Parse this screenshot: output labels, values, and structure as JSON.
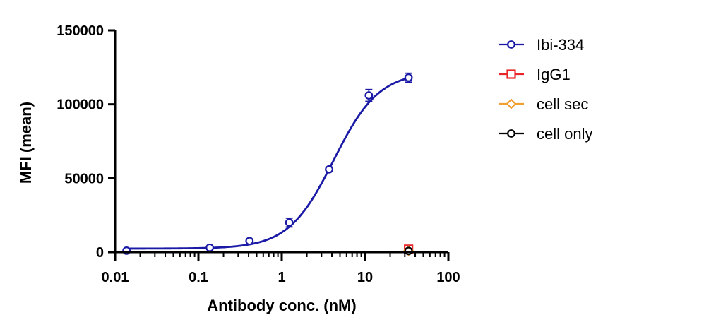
{
  "chart_data": {
    "type": "scatter",
    "title": "",
    "xlabel": "Antibody conc. (nM)",
    "ylabel": "MFI (mean)",
    "x_scale": "log",
    "xlim": [
      0.01,
      100
    ],
    "ylim": [
      0,
      150000
    ],
    "x_ticks": [
      "0.01",
      "0.1",
      "1",
      "10",
      "100"
    ],
    "y_ticks": [
      "0",
      "50000",
      "100000",
      "150000"
    ],
    "legend_position": "right",
    "grid": false,
    "series": [
      {
        "name": "Ibi-334",
        "color": "#1a1aa6",
        "marker": "circle",
        "fit_curve": true,
        "fit": {
          "bottom": 2400,
          "top": 122000,
          "ec50": 4.2,
          "hill": 1.6
        },
        "x": [
          0.0137,
          0.137,
          0.41,
          1.23,
          3.7,
          11.1,
          33.3
        ],
        "y": [
          1000,
          3000,
          7500,
          20000,
          56000,
          106000,
          118000
        ],
        "err": [
          0,
          600,
          900,
          3000,
          1500,
          4000,
          3000
        ]
      },
      {
        "name": "IgG1",
        "color": "#e8262a",
        "marker": "square",
        "x": [
          33.3
        ],
        "y": [
          2000
        ]
      },
      {
        "name": "cell sec",
        "color": "#f0a030",
        "marker": "diamond",
        "x": [
          33.3
        ],
        "y": [
          1000
        ]
      },
      {
        "name": "cell only",
        "color": "#000000",
        "marker": "circle",
        "x": [
          33.3
        ],
        "y": [
          800
        ]
      }
    ]
  }
}
